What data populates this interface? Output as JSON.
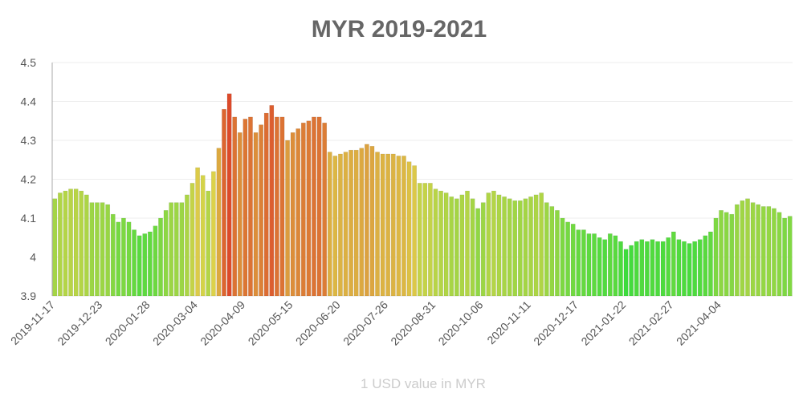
{
  "chart_data": {
    "type": "bar",
    "title": "MYR 2019-2021",
    "x_label": "1 USD value in MYR",
    "categories": [
      "2019-11-17",
      null,
      null,
      null,
      null,
      null,
      null,
      null,
      null,
      "2019-12-23",
      null,
      null,
      null,
      null,
      null,
      null,
      null,
      null,
      "2020-01-28",
      null,
      null,
      null,
      null,
      null,
      null,
      null,
      null,
      "2020-03-04",
      null,
      null,
      null,
      null,
      null,
      null,
      null,
      null,
      "2020-04-09",
      null,
      null,
      null,
      null,
      null,
      null,
      null,
      null,
      "2020-05-15",
      null,
      null,
      null,
      null,
      null,
      null,
      null,
      null,
      "2020-06-20",
      null,
      null,
      null,
      null,
      null,
      null,
      null,
      null,
      "2020-07-26",
      null,
      null,
      null,
      null,
      null,
      null,
      null,
      null,
      "2020-08-31",
      null,
      null,
      null,
      null,
      null,
      null,
      null,
      null,
      "2020-10-06",
      null,
      null,
      null,
      null,
      null,
      null,
      null,
      null,
      "2020-11-11",
      null,
      null,
      null,
      null,
      null,
      null,
      null,
      null,
      "2020-12-17",
      null,
      null,
      null,
      null,
      null,
      null,
      null,
      null,
      "2021-01-22",
      null,
      null,
      null,
      null,
      null,
      null,
      null,
      null,
      "2021-02-27",
      null,
      null,
      null,
      null,
      null,
      null,
      null,
      null,
      "2021-04-04",
      null,
      null,
      null,
      null,
      null,
      null,
      null,
      null,
      null,
      null,
      null,
      null,
      null
    ],
    "values": [
      4.15,
      4.165,
      4.17,
      4.175,
      4.175,
      4.17,
      4.16,
      4.14,
      4.14,
      4.14,
      4.135,
      4.11,
      4.09,
      4.1,
      4.09,
      4.07,
      4.055,
      4.06,
      4.065,
      4.08,
      4.1,
      4.12,
      4.14,
      4.14,
      4.14,
      4.16,
      4.19,
      4.23,
      4.21,
      4.17,
      4.22,
      4.28,
      4.38,
      4.42,
      4.36,
      4.32,
      4.355,
      4.36,
      4.32,
      4.34,
      4.37,
      4.39,
      4.36,
      4.36,
      4.3,
      4.32,
      4.33,
      4.345,
      4.35,
      4.36,
      4.36,
      4.345,
      4.27,
      4.26,
      4.265,
      4.27,
      4.275,
      4.275,
      4.28,
      4.29,
      4.285,
      4.27,
      4.265,
      4.265,
      4.265,
      4.26,
      4.26,
      4.245,
      4.235,
      4.19,
      4.19,
      4.19,
      4.175,
      4.17,
      4.165,
      4.155,
      4.15,
      4.16,
      4.17,
      4.15,
      4.125,
      4.14,
      4.165,
      4.17,
      4.16,
      4.155,
      4.15,
      4.145,
      4.145,
      4.15,
      4.155,
      4.16,
      4.165,
      4.14,
      4.13,
      4.12,
      4.1,
      4.09,
      4.085,
      4.07,
      4.07,
      4.06,
      4.06,
      4.05,
      4.045,
      4.06,
      4.055,
      4.04,
      4.02,
      4.03,
      4.04,
      4.045,
      4.04,
      4.045,
      4.04,
      4.04,
      4.05,
      4.065,
      4.045,
      4.04,
      4.035,
      4.04,
      4.045,
      4.055,
      4.065,
      4.1,
      4.12,
      4.115,
      4.11,
      4.135,
      4.145,
      4.15,
      4.14,
      4.135,
      4.13,
      4.13,
      4.125,
      4.115,
      4.1,
      4.105
    ],
    "color_scale": [
      "#3ddc3d",
      "#dcd24a",
      "#dc4a2a"
    ],
    "ylim": [
      3.9,
      4.5
    ],
    "yticks": [
      3.9,
      4.0,
      4.1,
      4.2,
      4.3,
      4.4,
      4.5
    ],
    "grid": true
  }
}
